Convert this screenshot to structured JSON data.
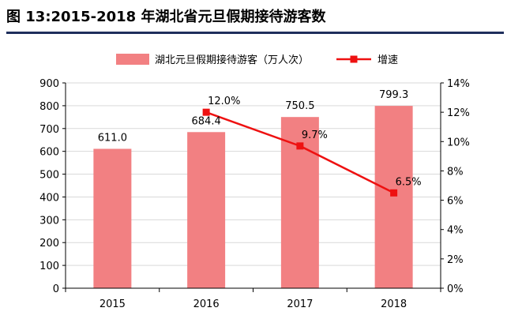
{
  "figure_title": "图 13:2015-2018 年湖北省元旦假期接待游客数",
  "colors": {
    "bar": "#f28082",
    "line": "#ee1111",
    "title_rule": "#1f2f5c",
    "axis": "#000000",
    "grid": "#d9d9d9"
  },
  "chart_data": {
    "type": "bar",
    "title": "",
    "categories": [
      "2015",
      "2016",
      "2017",
      "2018"
    ],
    "series": [
      {
        "name": "湖北元旦假期接待游客（万人次）",
        "type": "bar",
        "axis": "left",
        "values": [
          611.0,
          684.4,
          750.5,
          799.3
        ],
        "labels": [
          "611.0",
          "684.4",
          "750.5",
          "799.3"
        ]
      },
      {
        "name": "增速",
        "type": "line",
        "axis": "right",
        "values": [
          null,
          12.0,
          9.7,
          6.5
        ],
        "labels": [
          null,
          "12.0%",
          "9.7%",
          "6.5%"
        ]
      }
    ],
    "y_left": {
      "min": 0,
      "max": 900,
      "step": 100,
      "ticks": [
        "0",
        "100",
        "200",
        "300",
        "400",
        "500",
        "600",
        "700",
        "800",
        "900"
      ]
    },
    "y_right": {
      "min": 0,
      "max": 14,
      "step": 2,
      "ticks": [
        "0%",
        "2%",
        "4%",
        "6%",
        "8%",
        "10%",
        "12%",
        "14%"
      ]
    },
    "legend_position": "top",
    "grid": false
  }
}
